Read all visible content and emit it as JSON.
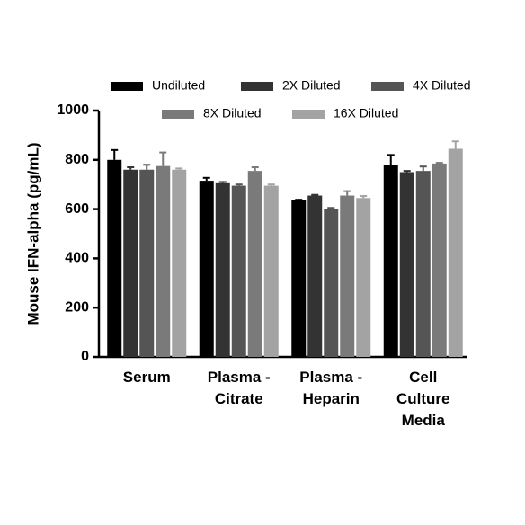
{
  "chart_data": {
    "type": "bar",
    "ylabel": "Mouse IFN-alpha (pg/mL)",
    "categories": [
      "Serum",
      "Plasma -\nCitrate",
      "Plasma -\nHeparin",
      "Cell\nCulture\nMedia"
    ],
    "series": [
      {
        "name": "Undiluted",
        "color": "#000000",
        "values": [
          800,
          715,
          635,
          780
        ],
        "errors": [
          40,
          12,
          3,
          40
        ]
      },
      {
        "name": "2X Diluted",
        "color": "#333333",
        "values": [
          760,
          705,
          655,
          750
        ],
        "errors": [
          10,
          5,
          3,
          5
        ]
      },
      {
        "name": "4X Diluted",
        "color": "#555555",
        "values": [
          760,
          695,
          600,
          755
        ],
        "errors": [
          20,
          5,
          5,
          18
        ]
      },
      {
        "name": "8X Diluted",
        "color": "#7a7a7a",
        "values": [
          775,
          755,
          655,
          785
        ],
        "errors": [
          55,
          15,
          18,
          3
        ]
      },
      {
        "name": "16X Diluted",
        "color": "#a3a3a3",
        "values": [
          760,
          695,
          645,
          845
        ],
        "errors": [
          5,
          5,
          8,
          30
        ]
      }
    ],
    "ylim": [
      0,
      1000
    ],
    "yticks": [
      0,
      200,
      400,
      600,
      800,
      1000
    ],
    "legend": "top"
  }
}
